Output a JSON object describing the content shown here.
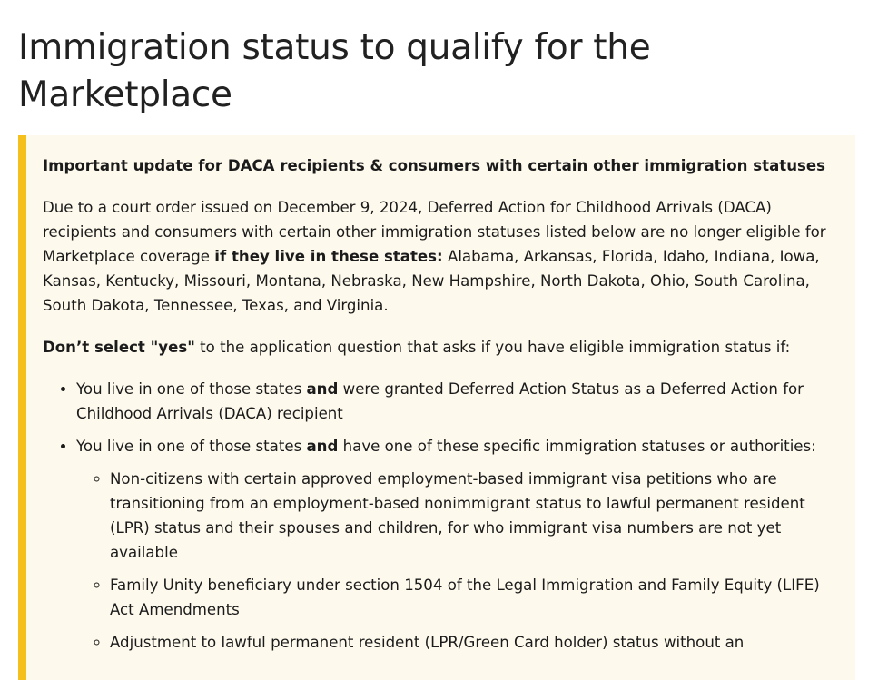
{
  "page": {
    "title": "Immigration status to qualify for the Marketplace"
  },
  "alert": {
    "heading": "Important update for DACA recipients & consumers with certain other immigration statuses",
    "intro": {
      "part1": "Due to a court order issued on December 9, 2024, Deferred Action for Childhood Arrivals (DACA) recipients and consumers with certain other immigration statuses listed below are no longer eligible for Marketplace coverage ",
      "bold": "if they live in these states:",
      "part2": " Alabama, Arkansas, Florida, Idaho, Indiana, Iowa, Kansas, Kentucky, Missouri, Montana, Nebraska, New Hampshire, North Dakota, Ohio, South Carolina, South Dakota, Tennessee, Texas, and Virginia."
    },
    "instruction": {
      "bold": "Don’t select \"yes\"",
      "rest": " to the application question that asks if you have eligible immigration status if:"
    },
    "bullets": [
      {
        "pre": "You live in one of those states ",
        "bold": "and",
        "post": " were granted Deferred Action Status as a Deferred Action for Childhood Arrivals (DACA) recipient"
      },
      {
        "pre": "You live in one of those states ",
        "bold": "and",
        "post": " have one of these specific immigration statuses or authorities:"
      }
    ],
    "sub_bullets": [
      "Non-citizens with certain approved employment-based immigrant visa petitions who are transitioning from an employment-based nonimmigrant status to lawful permanent resident (LPR) status and their spouses and children, for who immigrant visa numbers are not yet available",
      "Family Unity beneficiary under section 1504 of the Legal Immigration and Family Equity (LIFE) Act Amendments",
      "Adjustment to lawful permanent resident (LPR/Green Card holder) status without an"
    ],
    "colors": {
      "border": "#f6c01c",
      "background": "#fdf9ec"
    }
  }
}
